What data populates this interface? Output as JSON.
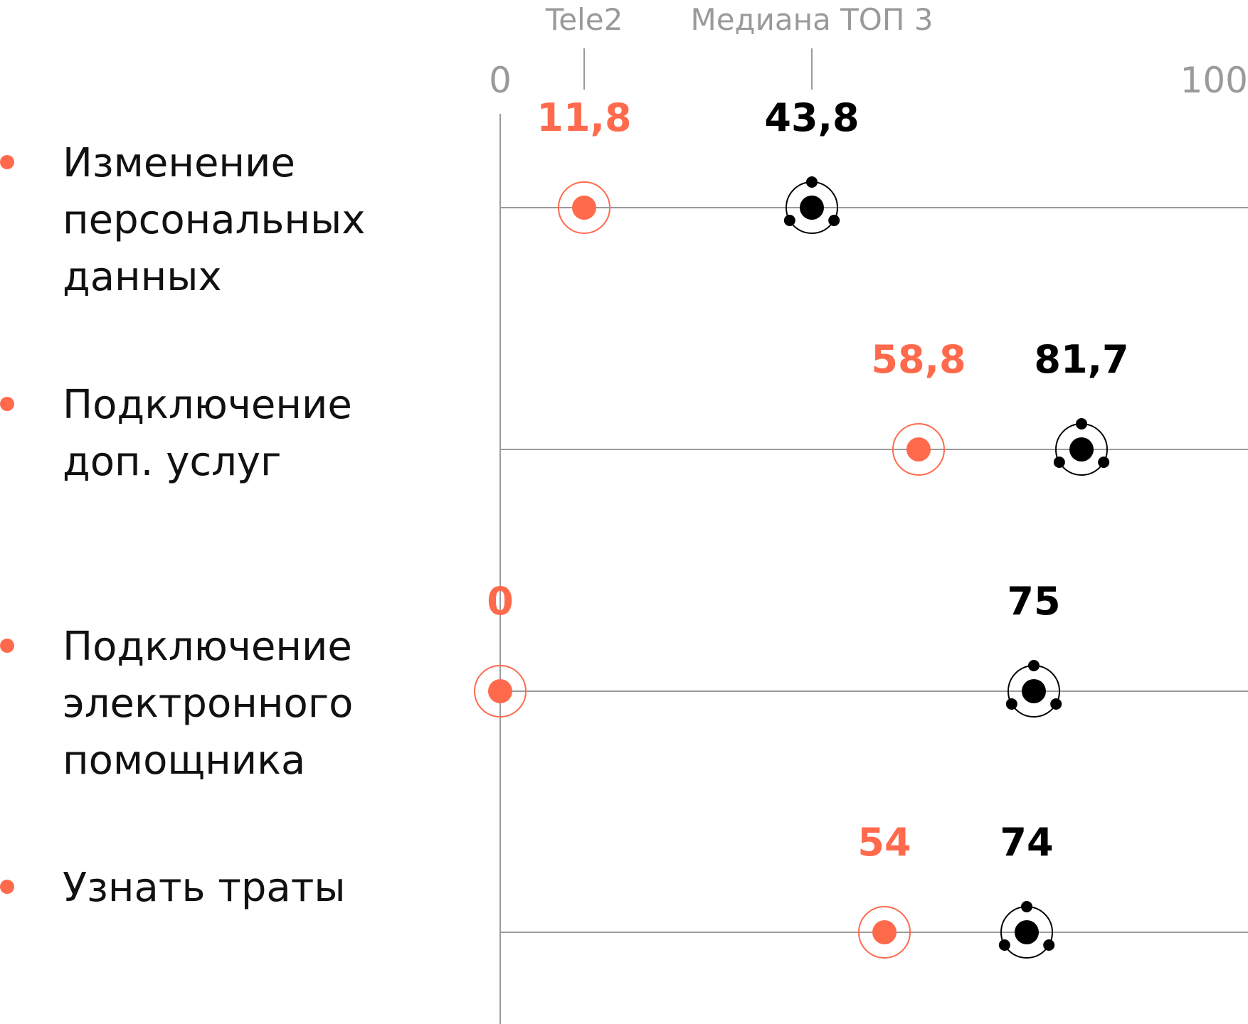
{
  "chart_data": {
    "type": "scatter",
    "xlim": [
      0,
      100
    ],
    "x_ticks": [
      "0",
      "100"
    ],
    "legend": [
      {
        "series": 0,
        "label": "Tele2"
      },
      {
        "series": 1,
        "label": "Медиана ТОП 3"
      }
    ],
    "categories": [
      [
        "Изменение",
        "персональных",
        "данных"
      ],
      [
        "Подключение",
        "доп. услуг"
      ],
      [
        "Подключение",
        "электронного",
        "помощника"
      ],
      [
        "Узнать траты"
      ]
    ],
    "series": [
      {
        "name": "Tele2",
        "color": "#ff6a4d",
        "values": [
          11.8,
          58.8,
          0,
          54
        ],
        "labels": [
          "11,8",
          "58,8",
          "0",
          "54"
        ]
      },
      {
        "name": "Медиана ТОП 3",
        "color": "#000000",
        "values": [
          43.8,
          81.7,
          75,
          74
        ],
        "labels": [
          "43,8",
          "81,7",
          "75",
          "74"
        ]
      }
    ],
    "legend_marker_values": [
      11.8,
      43.8
    ],
    "grid": true,
    "colors": {
      "accent": "#ff6a4d",
      "median": "#000000",
      "axis": "#9a9a9a",
      "gridline": "#9a9a9a",
      "text": "#111111"
    }
  }
}
